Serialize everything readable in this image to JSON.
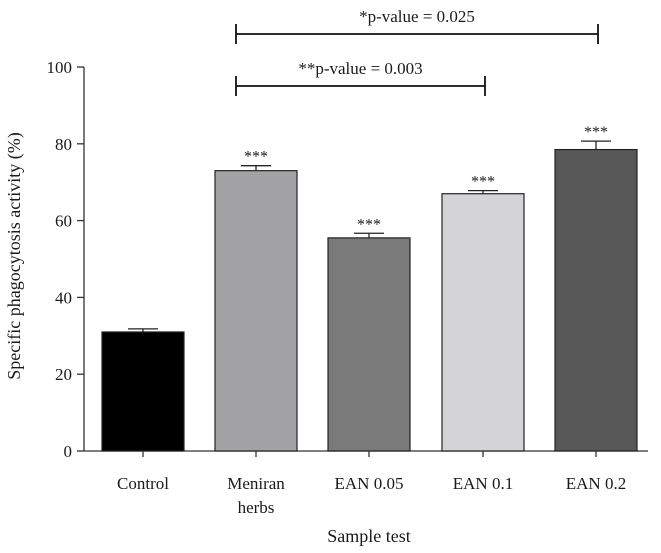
{
  "chart_data": {
    "type": "bar",
    "title": "",
    "xlabel": "Sample test",
    "ylabel": "Specific phagocytosis activity (%)",
    "ylim": [
      0,
      100
    ],
    "yticks": [
      0,
      20,
      40,
      60,
      80,
      100
    ],
    "grid": false,
    "categories": [
      [
        "Control"
      ],
      [
        "Meniran",
        "herbs"
      ],
      [
        "EAN 0.05"
      ],
      [
        "EAN 0.1"
      ],
      [
        "EAN 0.2"
      ]
    ],
    "values": [
      31,
      73,
      55.5,
      67,
      78.5
    ],
    "errors": [
      0.8,
      1.3,
      1.2,
      0.8,
      2.2
    ],
    "bar_colors": [
      "#000000",
      "#a3a3a6",
      "#7a7a7a",
      "#d4d4d6",
      "#585858"
    ],
    "annotations": [
      "",
      "***",
      "***",
      "***",
      "***"
    ],
    "significance": [
      {
        "label": "*p-value = 0.025",
        "from": 1,
        "to": 4,
        "level": 1
      },
      {
        "label": "**p-value = 0.003",
        "from": 1,
        "to": 3,
        "level": 0
      }
    ]
  }
}
